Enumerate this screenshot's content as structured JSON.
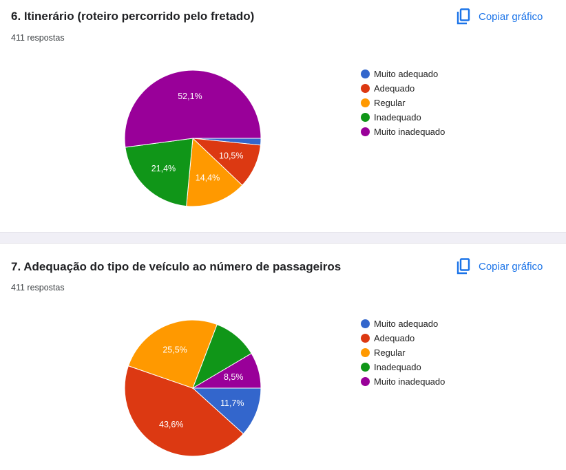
{
  "colors": [
    "#3366cc",
    "#dc3912",
    "#ff9900",
    "#109618",
    "#990099"
  ],
  "copy_label": "Copiar gráfico",
  "questions": [
    {
      "title": "6.  Itinerário (roteiro percorrido pelo fretado)",
      "responses": "411 respostas"
    },
    {
      "title": "7. Adequação do tipo de veículo ao número de passageiros",
      "responses": "411 respostas"
    }
  ],
  "chart_data": [
    {
      "type": "pie",
      "categories": [
        "Muito adequado",
        "Adequado",
        "Regular",
        "Inadequado",
        "Muito inadequado"
      ],
      "values": [
        1.6,
        10.5,
        14.4,
        21.4,
        52.1
      ],
      "labels": [
        "",
        "10,5%",
        "14,4%",
        "21,4%",
        "52,1%"
      ],
      "start_angle_deg": 90,
      "legend": "right"
    },
    {
      "type": "pie",
      "categories": [
        "Muito adequado",
        "Adequado",
        "Regular",
        "Inadequado",
        "Muito inadequado"
      ],
      "values": [
        11.7,
        43.6,
        25.5,
        10.7,
        8.5
      ],
      "labels": [
        "11,7%",
        "43,6%",
        "25,5%",
        "",
        "8,5%"
      ],
      "start_angle_deg": 90,
      "legend": "right"
    }
  ]
}
